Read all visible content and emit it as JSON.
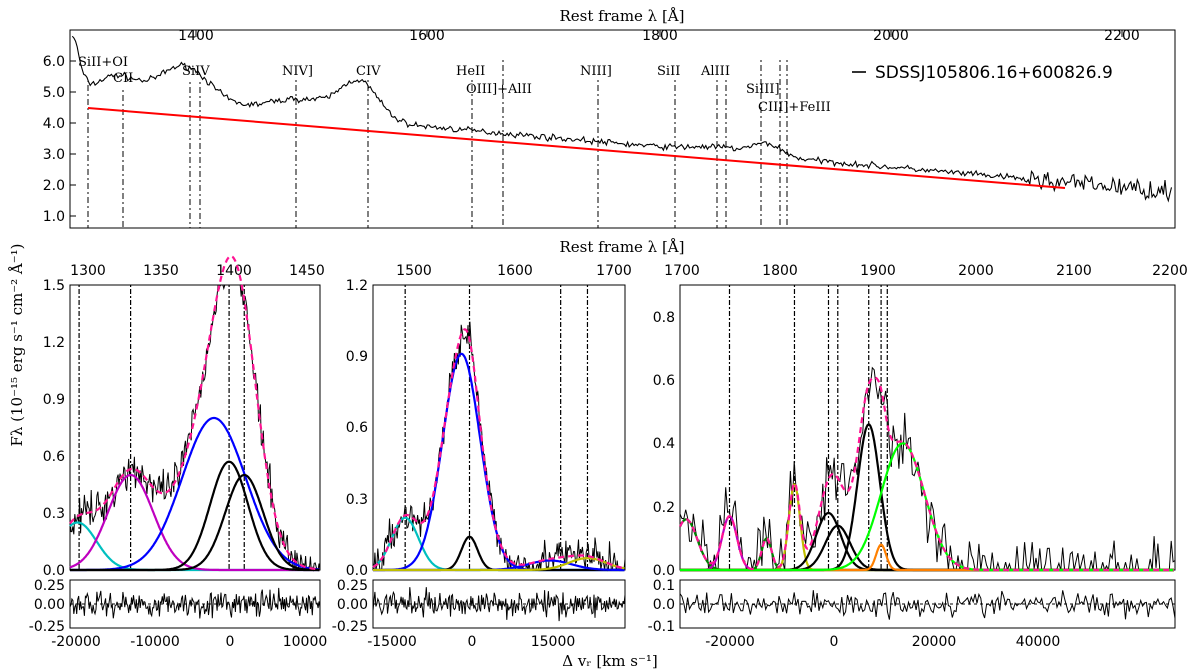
{
  "chart_data": {
    "type": "line",
    "y_label": "Fλ (10⁻¹⁵ erg s⁻¹ cm⁻² Å⁻¹)",
    "x_label_bottom": "Δ vᵣ [km s⁻¹]",
    "top_panel": {
      "xlabel": "Rest frame λ [Å]",
      "xlim": [
        1300,
        2250
      ],
      "ylim": [
        0.5,
        6.5
      ],
      "xticks": [
        1400,
        1600,
        1800,
        2000,
        2200
      ],
      "yticks": [
        1.0,
        2.0,
        3.0,
        4.0,
        5.0,
        6.0
      ],
      "ytick_labels": [
        "1.0",
        "2.0",
        "3.0",
        "4.0",
        "5.0",
        "6.0"
      ],
      "legend": "SDSSJ105806.16+600826.9",
      "continuum": {
        "color": "#ff0000",
        "x": [
          1305,
          2150
        ],
        "y": [
          4.5,
          1.9
        ]
      },
      "emission_lines": [
        {
          "label": "SiII+OI",
          "wavelengths": [
            1305
          ]
        },
        {
          "label": "CII",
          "wavelengths": [
            1335
          ]
        },
        {
          "label": "SiIV",
          "wavelengths": [
            1394,
            1403
          ]
        },
        {
          "label": "NIV]",
          "wavelengths": [
            1486
          ]
        },
        {
          "label": "CIV",
          "wavelengths": [
            1549
          ]
        },
        {
          "label": "HeII",
          "wavelengths": [
            1640
          ]
        },
        {
          "label": "OIII]+AlII",
          "wavelengths": [
            1666
          ]
        },
        {
          "label": "NIII]",
          "wavelengths": [
            1750
          ]
        },
        {
          "label": "SiII",
          "wavelengths": [
            1816
          ]
        },
        {
          "label": "AlIII",
          "wavelengths": [
            1855,
            1863
          ]
        },
        {
          "label": "SiIII]",
          "wavelengths": [
            1892
          ]
        },
        {
          "label": "CIII]+FeIII",
          "wavelengths": [
            1909,
            1915
          ]
        }
      ]
    },
    "bottom_panels": [
      {
        "name": "SiIV region",
        "top_xlim": [
          1300,
          1450
        ],
        "top_xticks": [
          1300,
          1350,
          1400,
          1450
        ],
        "ylim": [
          0,
          1.5
        ],
        "yticks": [
          0.0,
          0.3,
          0.6,
          0.9,
          1.2,
          1.5
        ],
        "ytick_labels": [
          "0.0",
          "0.3",
          "0.6",
          "0.9",
          "1.2",
          "1.5"
        ],
        "vlim": [
          -21000,
          12000
        ],
        "vticks": [
          -20000,
          -10000,
          0,
          10000
        ],
        "vlines_kms": [
          -19800,
          -13000,
          0,
          2000
        ],
        "components": [
          {
            "color": "#00bfbf",
            "center": -20000,
            "sigma": 2500,
            "amp": 0.25
          },
          {
            "color": "#bf00bf",
            "center": -13000,
            "sigma": 3000,
            "amp": 0.5
          },
          {
            "color": "#0000ff",
            "center": -2000,
            "sigma": 4200,
            "amp": 0.8
          },
          {
            "color": "#000000",
            "center": 0,
            "sigma": 2500,
            "amp": 0.57
          },
          {
            "color": "#000000",
            "center": 2000,
            "sigma": 2500,
            "amp": 0.5
          }
        ],
        "residual_ylim": [
          -0.25,
          0.25
        ],
        "residual_yticks": [
          "0.25",
          "0.00",
          "-0.25"
        ]
      },
      {
        "name": "CIV region",
        "top_xlim": [
          1460,
          1710
        ],
        "top_xticks": [
          1500,
          1600,
          1700
        ],
        "ylim": [
          0,
          1.2
        ],
        "yticks": [
          0.0,
          0.3,
          0.6,
          0.9,
          1.2
        ],
        "ytick_labels": [
          "0.0",
          "0.3",
          "0.6",
          "0.9",
          "1.2"
        ],
        "vlim": [
          -18000,
          29000
        ],
        "vticks": [
          -15000,
          0,
          15000
        ],
        "vlines_kms": [
          -12000,
          0,
          17000,
          22000
        ],
        "components": [
          {
            "color": "#00bfbf",
            "center": -12000,
            "sigma": 2500,
            "amp": 0.22
          },
          {
            "color": "#0000ff",
            "center": -1500,
            "sigma": 3500,
            "amp": 0.91
          },
          {
            "color": "#000000",
            "center": 0,
            "sigma": 1500,
            "amp": 0.14
          },
          {
            "color": "#0000ff",
            "center": 15000,
            "sigma": 4000,
            "amp": 0.04
          },
          {
            "color": "#bfbf00",
            "center": 22000,
            "sigma": 3500,
            "amp": 0.05
          }
        ],
        "residual_ylim": [
          -0.25,
          0.25
        ],
        "residual_yticks": [
          "0.25",
          "0.00",
          "-0.25"
        ]
      },
      {
        "name": "CIII] region",
        "top_xlim": [
          1700,
          2200
        ],
        "top_xticks": [
          1700,
          1800,
          1900,
          2000,
          2100,
          2200
        ],
        "ylim": [
          0,
          0.9
        ],
        "yticks": [
          0.0,
          0.2,
          0.4,
          0.6,
          0.8
        ],
        "ytick_labels": [
          "0.0",
          "0.2",
          "0.4",
          "0.6",
          "0.8"
        ],
        "vlim": [
          -24000,
          56000
        ],
        "vticks": [
          -20000,
          0,
          20000,
          40000
        ],
        "vlines_kms": [
          -16000,
          -5500,
          0,
          1500,
          6500,
          8500,
          9500
        ],
        "components": [
          {
            "color": "#008000",
            "center": -23000,
            "sigma": 1800,
            "amp": 0.16
          },
          {
            "color": "#bf00bf",
            "center": -16000,
            "sigma": 1200,
            "amp": 0.17
          },
          {
            "color": "#008000",
            "center": -10000,
            "sigma": 800,
            "amp": 0.1
          },
          {
            "color": "#bfbf00",
            "center": -5500,
            "sigma": 900,
            "amp": 0.27
          },
          {
            "color": "#000000",
            "center": 0,
            "sigma": 2000,
            "amp": 0.18
          },
          {
            "color": "#000000",
            "center": 1500,
            "sigma": 2000,
            "amp": 0.14
          },
          {
            "color": "#000000",
            "center": 6500,
            "sigma": 1800,
            "amp": 0.46
          },
          {
            "color": "#ff8000",
            "center": 8500,
            "sigma": 800,
            "amp": 0.08
          },
          {
            "color": "#00ff00",
            "center": 12000,
            "sigma": 3500,
            "amp": 0.4
          }
        ],
        "residual_ylim": [
          -0.1,
          0.1
        ],
        "residual_yticks": [
          "0.1",
          "0.0",
          "-0.1"
        ]
      }
    ]
  }
}
